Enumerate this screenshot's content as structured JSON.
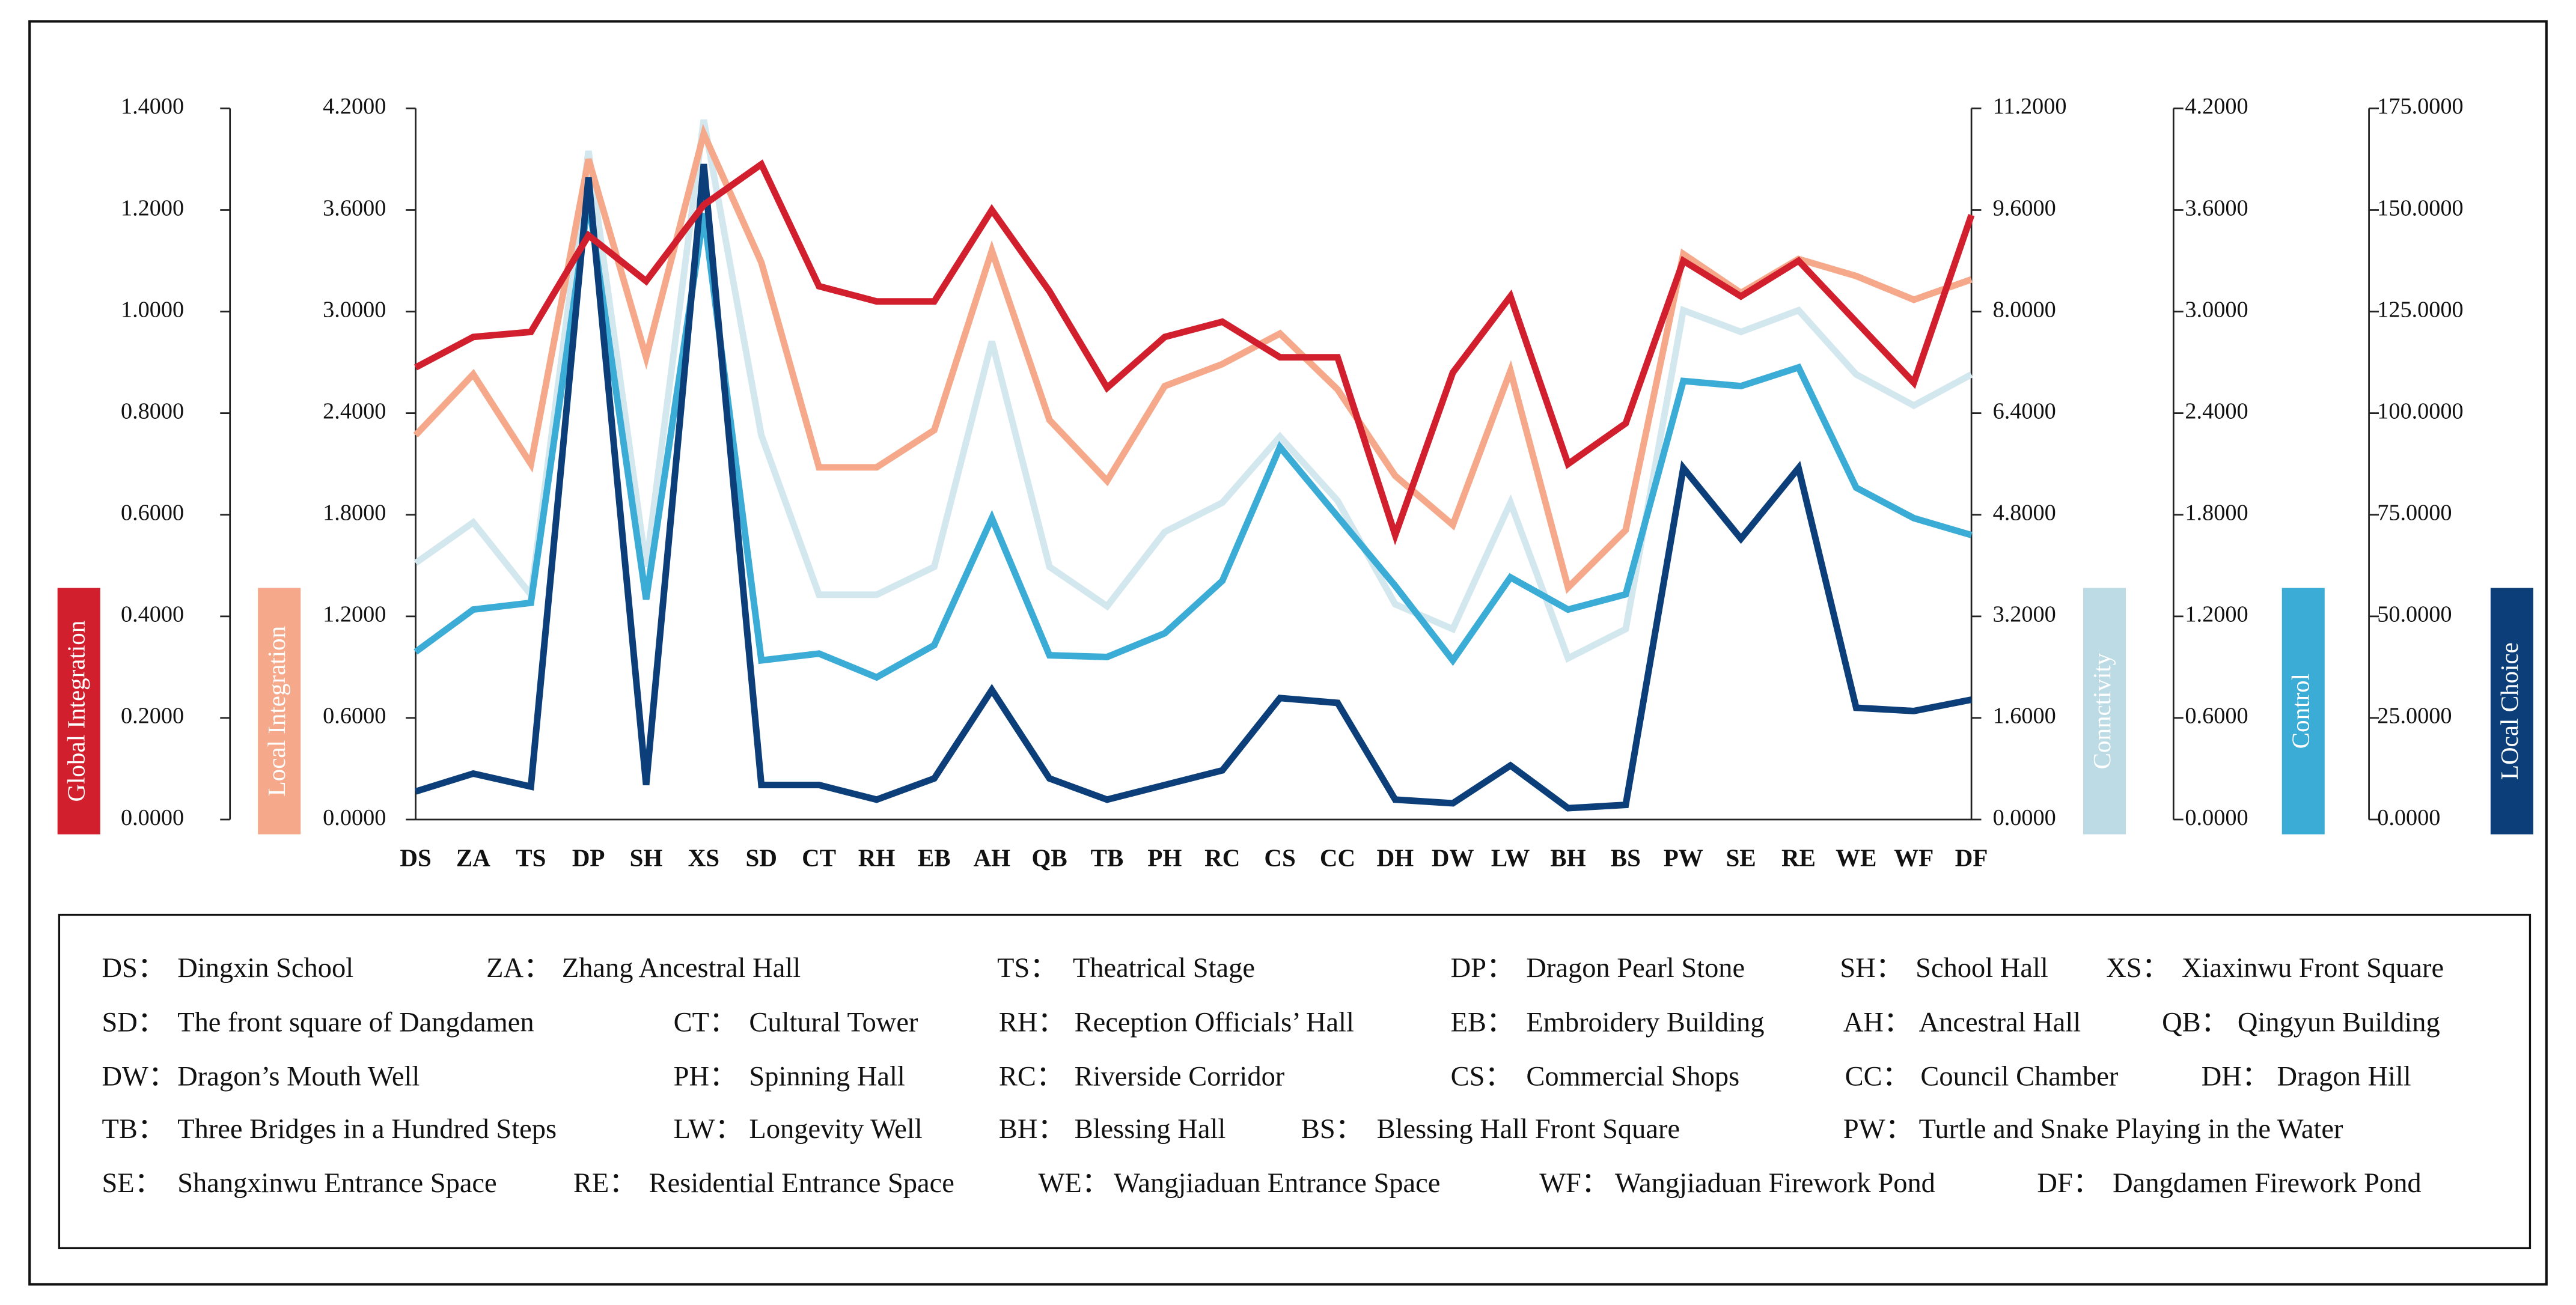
{
  "chart_data": {
    "type": "line",
    "categories": [
      "DS",
      "ZA",
      "TS",
      "DP",
      "SH",
      "XS",
      "SD",
      "CT",
      "RH",
      "EB",
      "AH",
      "QB",
      "TB",
      "PH",
      "RC",
      "CS",
      "CC",
      "DH",
      "DW",
      "LW",
      "BH",
      "BS",
      "PW",
      "SE",
      "RE",
      "WE",
      "WF",
      "DF"
    ],
    "series": [
      {
        "name": "Global Integration",
        "color": "#d21f2d",
        "values": [
          0.89,
          0.95,
          0.96,
          1.15,
          1.06,
          1.21,
          1.29,
          1.05,
          1.02,
          1.02,
          1.2,
          1.04,
          0.85,
          0.95,
          0.98,
          0.91,
          0.91,
          0.56,
          0.88,
          1.03,
          0.7,
          0.78,
          1.1,
          1.03,
          1.1,
          0.98,
          0.86,
          1.19
        ],
        "ylim": [
          0,
          1.4
        ],
        "yticks": [
          {
            "value": 0,
            "label": "0.0000"
          },
          {
            "value": 0.2,
            "label": "0.2000"
          },
          {
            "value": 0.4,
            "label": "0.4000"
          },
          {
            "value": 0.6,
            "label": "0.6000"
          },
          {
            "value": 0.8,
            "label": "0.8000"
          },
          {
            "value": 1.0,
            "label": "1.0000"
          },
          {
            "value": 1.2,
            "label": "1.2000"
          },
          {
            "value": 1.4,
            "label": "1.4000"
          }
        ]
      },
      {
        "name": "Local Integration",
        "color": "#f6a98a",
        "values": [
          2.27,
          2.63,
          2.1,
          3.9,
          2.73,
          4.05,
          3.29,
          2.08,
          2.08,
          2.3,
          3.36,
          2.36,
          2.0,
          2.56,
          2.69,
          2.87,
          2.54,
          2.03,
          1.74,
          2.65,
          1.37,
          1.71,
          3.34,
          3.11,
          3.31,
          3.21,
          3.07,
          3.19
        ],
        "ylim": [
          0,
          4.2
        ],
        "yticks": [
          {
            "value": 0,
            "label": "0.0000"
          },
          {
            "value": 0.6,
            "label": "0.6000"
          },
          {
            "value": 1.2,
            "label": "1.2000"
          },
          {
            "value": 1.8,
            "label": "1.8000"
          },
          {
            "value": 2.4,
            "label": "2.4000"
          },
          {
            "value": 3.0,
            "label": "3.0000"
          },
          {
            "value": 3.6,
            "label": "3.6000"
          },
          {
            "value": 4.2,
            "label": "4.2000"
          }
        ]
      },
      {
        "name": "Connctivity",
        "color": "#d3e8ee",
        "values": [
          4.04,
          4.68,
          3.54,
          10.53,
          3.98,
          11.02,
          6.05,
          3.54,
          3.54,
          3.98,
          7.53,
          3.98,
          3.36,
          4.53,
          4.99,
          6.03,
          5.02,
          3.39,
          3.0,
          4.99,
          2.54,
          3.0,
          8.02,
          7.68,
          8.02,
          7.01,
          6.52,
          7.01
        ],
        "ylim": [
          0,
          11.2
        ],
        "yticks": [
          {
            "value": 0,
            "label": "0.0000"
          },
          {
            "value": 1.6,
            "label": "1.6000"
          },
          {
            "value": 3.2,
            "label": "3.2000"
          },
          {
            "value": 4.8,
            "label": "4.8000"
          },
          {
            "value": 6.4,
            "label": "6.4000"
          },
          {
            "value": 8.0,
            "label": "8.0000"
          },
          {
            "value": 9.6,
            "label": "9.6000"
          },
          {
            "value": 11.2,
            "label": "11.2000"
          }
        ]
      },
      {
        "name": "Control",
        "color": "#3aacd6",
        "values": [
          0.99,
          1.24,
          1.28,
          3.66,
          1.3,
          3.58,
          0.94,
          0.98,
          0.84,
          1.03,
          1.78,
          0.97,
          0.96,
          1.1,
          1.41,
          2.2,
          1.79,
          1.38,
          0.94,
          1.43,
          1.24,
          1.33,
          2.59,
          2.56,
          2.67,
          1.96,
          1.78,
          1.68
        ],
        "ylim": [
          0,
          4.2
        ],
        "yticks": [
          {
            "value": 0,
            "label": "0.0000"
          },
          {
            "value": 0.6,
            "label": "0.6000"
          },
          {
            "value": 1.2,
            "label": "1.2000"
          },
          {
            "value": 1.8,
            "label": "1.8000"
          },
          {
            "value": 2.4,
            "label": "2.4000"
          },
          {
            "value": 3.0,
            "label": "3.0000"
          },
          {
            "value": 3.6,
            "label": "3.6000"
          },
          {
            "value": 4.2,
            "label": "4.2000"
          }
        ]
      },
      {
        "name": "LOcal Choice",
        "color": "#0c3f7a",
        "values": [
          6.9,
          11.3,
          8.1,
          158.0,
          8.5,
          161.3,
          8.5,
          8.5,
          4.9,
          10.1,
          31.9,
          10.1,
          4.9,
          8.5,
          12.1,
          29.9,
          28.7,
          4.9,
          4.0,
          13.3,
          2.8,
          3.6,
          86.5,
          69.1,
          86.5,
          27.5,
          26.7,
          29.5
        ],
        "ylim": [
          0,
          175
        ],
        "yticks": [
          {
            "value": 0,
            "label": "0.0000"
          },
          {
            "value": 25,
            "label": "25.0000"
          },
          {
            "value": 50,
            "label": "50.0000"
          },
          {
            "value": 75,
            "label": "75.0000"
          },
          {
            "value": 100,
            "label": "100.0000"
          },
          {
            "value": 125,
            "label": "125.0000"
          },
          {
            "value": 150,
            "label": "150.0000"
          },
          {
            "value": 175,
            "label": "175.0000"
          }
        ]
      }
    ],
    "notes": [
      [
        {
          "code": "DS：",
          "text": "Dingxin School"
        },
        {
          "code": "ZA：",
          "text": "Zhang Ancestral Hall"
        },
        {
          "code": "TS：",
          "text": "Theatrical Stage"
        },
        {
          "code": "DP：",
          "text": "Dragon Pearl Stone"
        },
        {
          "code": "SH：",
          "text": "School Hall"
        },
        {
          "code": "XS：",
          "text": "Xiaxinwu Front Square"
        }
      ],
      [
        {
          "code": "SD：",
          "text": "The front square of Dangdamen"
        },
        {
          "code": "CT：",
          "text": "Cultural Tower"
        },
        {
          "code": "RH：",
          "text": "Reception Officials’ Hall"
        },
        {
          "code": "EB：",
          "text": "Embroidery Building"
        },
        {
          "code": "AH：",
          "text": "Ancestral Hall"
        },
        {
          "code": "QB：",
          "text": "Qingyun Building"
        }
      ],
      [
        {
          "code": "DW：",
          "text": "Dragon’s Mouth Well"
        },
        {
          "code": "PH：",
          "text": "Spinning Hall"
        },
        {
          "code": "RC：",
          "text": "Riverside Corridor"
        },
        {
          "code": "CS：",
          "text": "Commercial Shops"
        },
        {
          "code": "CC：",
          "text": "Council Chamber"
        },
        {
          "code": "DH：",
          "text": "Dragon Hill"
        }
      ],
      [
        {
          "code": "TB：",
          "text": "Three Bridges in a Hundred Steps"
        },
        {
          "code": "LW：",
          "text": "Longevity Well"
        },
        {
          "code": "BH：",
          "text": "Blessing Hall"
        },
        {
          "code": "BS：",
          "text": "Blessing Hall Front Square"
        },
        {
          "code": "PW：",
          "text": "Turtle and Snake Playing in the Water"
        }
      ],
      [
        {
          "code": "SE：",
          "text": "Shangxinwu Entrance Space"
        },
        {
          "code": "RE：",
          "text": "Residential Entrance Space"
        },
        {
          "code": "WE：",
          "text": "Wangjiaduan Entrance Space"
        },
        {
          "code": "WF：",
          "text": "Wangjiaduan Firework Pond"
        },
        {
          "code": "DF：",
          "text": "Dangdamen Firework Pond"
        }
      ]
    ]
  }
}
